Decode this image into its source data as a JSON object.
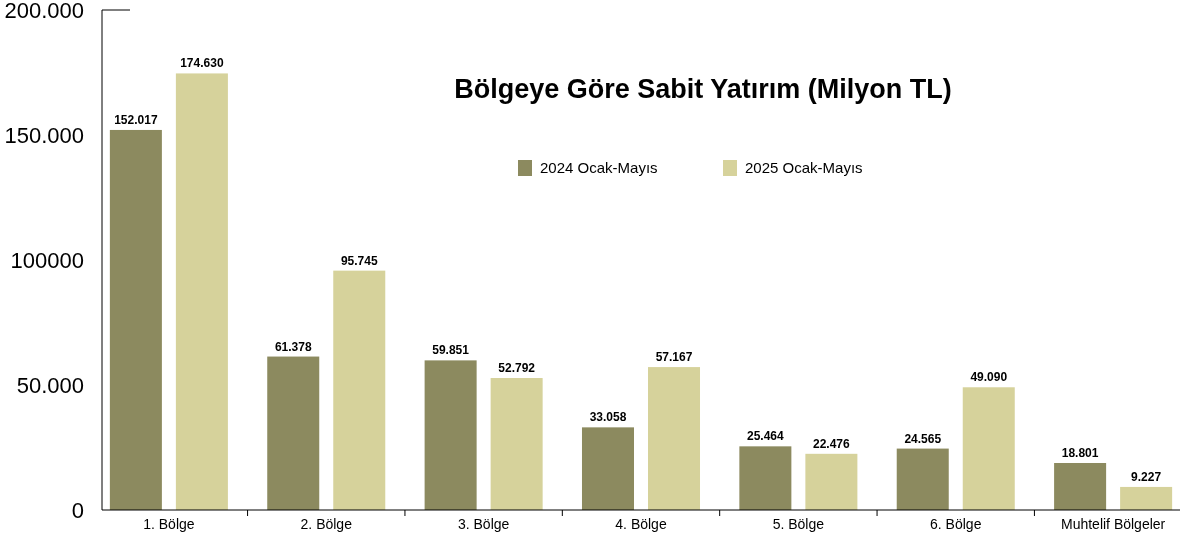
{
  "chart_data": {
    "type": "bar",
    "title": "Bölgeye Göre Sabit Yatırım (Milyon TL)",
    "categories": [
      "1. Bölge",
      "2. Bölge",
      "3. Bölge",
      "4. Bölge",
      "5. Bölge",
      "6. Bölge",
      "Muhtelif Bölgeler"
    ],
    "series": [
      {
        "name": "2024 Ocak-Mayıs",
        "color": "#8c8a5f",
        "values": [
          152017,
          61378,
          59851,
          33058,
          25464,
          24565,
          18801
        ],
        "value_labels": [
          "152.017",
          "61.378",
          "59.851",
          "33.058",
          "25.464",
          "24.565",
          "18.801"
        ]
      },
      {
        "name": "2025 Ocak-Mayıs",
        "color": "#d6d29b",
        "values": [
          174630,
          95745,
          52792,
          57167,
          22476,
          49090,
          9227
        ],
        "value_labels": [
          "174.630",
          "95.745",
          "52.792",
          "57.167",
          "22.476",
          "49.090",
          "9.227"
        ]
      }
    ],
    "ylim": [
      0,
      200000
    ],
    "yticks": [
      {
        "value": 0,
        "label": "0"
      },
      {
        "value": 50000,
        "label": "50.000"
      },
      {
        "value": 100000,
        "label": "100000"
      },
      {
        "value": 150000,
        "label": "150.000"
      },
      {
        "value": 200000,
        "label": "200.000"
      }
    ],
    "grid": false,
    "legend": "top"
  }
}
